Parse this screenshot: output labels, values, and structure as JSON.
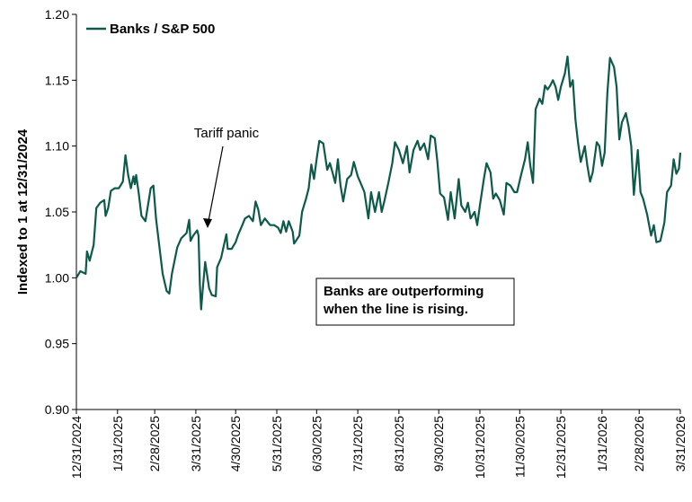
{
  "chart_data": {
    "type": "line",
    "y_label": "Indexed to 1 at 12/31/2024",
    "annotations": [
      {
        "text": "Tariff panic"
      },
      {
        "lines": [
          "Banks are outperforming",
          "when the line is rising."
        ]
      }
    ],
    "legend": "top-left",
    "x": [
      "12/31/2024",
      "1/3/2025",
      "1/7/2025",
      "1/8/2025",
      "1/10/2025",
      "1/13/2025",
      "1/15/2025",
      "1/18/2025",
      "1/21/2025",
      "1/22/2025",
      "1/24/2025",
      "1/26/2025",
      "1/29/2025",
      "2/1/2025",
      "2/4/2025",
      "2/6/2025",
      "2/8/2025",
      "2/10/2025",
      "2/12/2025",
      "2/13/2025",
      "2/14/2025",
      "2/16/2025",
      "2/18/2025",
      "2/21/2025",
      "2/25/2025",
      "2/27/2025",
      "3/1/2025",
      "3/4/2025",
      "3/6/2025",
      "3/9/2025",
      "3/11/2025",
      "3/13/2025",
      "3/17/2025",
      "3/20/2025",
      "3/24/2025",
      "3/26/2025",
      "3/27/2025",
      "3/29/2025",
      "4/1/2025",
      "4/2/2025",
      "4/3/2025",
      "4/4/2025",
      "4/5/2025",
      "4/7/2025",
      "4/10/2025",
      "4/12/2025",
      "4/15/2025",
      "4/16/2025",
      "4/19/2025",
      "4/21/2025",
      "4/23/2025",
      "4/24/2025",
      "4/27/2025",
      "4/30/2025",
      "5/2/2025",
      "5/5/2025",
      "5/7/2025",
      "5/10/2025",
      "5/13/2025",
      "5/15/2025",
      "5/17/2025",
      "5/19/2025",
      "5/22/2025",
      "5/26/2025",
      "5/29/2025",
      "6/1/2025",
      "6/3/2025",
      "6/5/2025",
      "6/7/2025",
      "6/9/2025",
      "6/12/2025",
      "6/13/2025",
      "6/17/2025",
      "6/19/2025",
      "6/22/2025",
      "6/24/2025",
      "6/26/2025",
      "6/28/2025",
      "6/30/2025",
      "7/2/2025",
      "7/5/2025",
      "7/8/2025",
      "7/10/2025",
      "7/12/2025",
      "7/14/2025",
      "7/16/2025",
      "7/18/2025",
      "7/20/2025",
      "7/23/2025",
      "7/26/2025",
      "7/28/2025",
      "7/31/2025",
      "8/3/2025",
      "8/5/2025",
      "8/8/2025",
      "8/10/2025",
      "8/13/2025",
      "8/16/2025",
      "8/18/2025",
      "8/20/2025",
      "8/23/2025",
      "8/26/2025",
      "8/28/2025",
      "8/31/2025",
      "9/3/2025",
      "9/6/2025",
      "9/8/2025",
      "9/11/2025",
      "9/14/2025",
      "9/16/2025",
      "9/19/2025",
      "9/22/2025",
      "9/24/2025",
      "9/27/2025",
      "9/29/2025",
      "10/1/2025",
      "10/4/2025",
      "10/7/2025",
      "10/9/2025",
      "10/12/2025",
      "10/15/2025",
      "10/17/2025",
      "10/20/2025",
      "10/22/2025",
      "10/24/2025",
      "10/27/2025",
      "10/29/2025",
      "10/31/2025",
      "11/3/2025",
      "11/5/2025",
      "11/8/2025",
      "11/10/2025",
      "11/12/2025",
      "11/15/2025",
      "11/18/2025",
      "11/20/2025",
      "11/23/2025",
      "11/26/2025",
      "11/28/2025",
      "12/1/2025",
      "12/4/2025",
      "12/6/2025",
      "12/8/2025",
      "12/10/2025",
      "12/12/2025",
      "12/15/2025",
      "12/17/2025",
      "12/19/2025",
      "12/21/2025",
      "12/23/2025",
      "12/25/2025",
      "12/27/2025",
      "12/29/2025",
      "12/31/2025",
      "1/3/2026",
      "1/5/2026",
      "1/7/2026",
      "1/9/2026",
      "1/11/2026",
      "1/13/2026",
      "1/15/2026",
      "1/18/2026",
      "1/20/2026",
      "1/22/2026",
      "1/24/2026",
      "1/27/2026",
      "1/29/2026",
      "1/31/2026",
      "2/2/2026",
      "2/4/2026",
      "2/6/2026",
      "2/9/2026",
      "2/11/2026",
      "2/13/2026",
      "2/15/2026",
      "2/18/2026",
      "2/20/2026",
      "2/22/2026",
      "2/24/2026",
      "2/27/2026",
      "3/1/2026",
      "3/3/2026",
      "3/6/2026",
      "3/9/2026",
      "3/11/2026",
      "3/13/2026",
      "3/16/2026",
      "3/19/2026",
      "3/21/2026",
      "3/24/2026",
      "3/26/2026",
      "3/28/2026",
      "3/30/2026",
      "3/31/2026"
    ],
    "series": [
      {
        "name": "Banks / S&P 500",
        "color": "#0e5a4a",
        "values": [
          1.0,
          1.005,
          1.003,
          1.02,
          1.013,
          1.025,
          1.053,
          1.057,
          1.059,
          1.047,
          1.053,
          1.066,
          1.068,
          1.068,
          1.073,
          1.093,
          1.078,
          1.068,
          1.077,
          1.071,
          1.078,
          1.064,
          1.047,
          1.043,
          1.068,
          1.07,
          1.045,
          1.02,
          1.003,
          0.99,
          0.988,
          1.003,
          1.023,
          1.03,
          1.034,
          1.044,
          1.028,
          1.032,
          1.036,
          1.032,
          0.995,
          0.976,
          0.989,
          1.012,
          0.992,
          0.987,
          0.986,
          1.008,
          1.015,
          1.024,
          1.033,
          1.022,
          1.022,
          1.027,
          1.033,
          1.04,
          1.045,
          1.047,
          1.043,
          1.058,
          1.052,
          1.04,
          1.045,
          1.04,
          1.04,
          1.038,
          1.034,
          1.043,
          1.035,
          1.043,
          1.035,
          1.026,
          1.032,
          1.05,
          1.06,
          1.068,
          1.086,
          1.075,
          1.09,
          1.104,
          1.102,
          1.082,
          1.087,
          1.08,
          1.072,
          1.09,
          1.07,
          1.058,
          1.075,
          1.078,
          1.088,
          1.077,
          1.07,
          1.065,
          1.045,
          1.065,
          1.05,
          1.065,
          1.05,
          1.058,
          1.072,
          1.087,
          1.103,
          1.097,
          1.087,
          1.1,
          1.08,
          1.097,
          1.104,
          1.097,
          1.102,
          1.09,
          1.108,
          1.106,
          1.088,
          1.064,
          1.061,
          1.044,
          1.065,
          1.045,
          1.075,
          1.055,
          1.05,
          1.057,
          1.045,
          1.05,
          1.04,
          1.055,
          1.075,
          1.087,
          1.08,
          1.06,
          1.064,
          1.059,
          1.048,
          1.072,
          1.07,
          1.065,
          1.065,
          1.078,
          1.09,
          1.103,
          1.085,
          1.072,
          1.128,
          1.136,
          1.132,
          1.146,
          1.143,
          1.146,
          1.15,
          1.145,
          1.135,
          1.145,
          1.155,
          1.168,
          1.145,
          1.15,
          1.12,
          1.102,
          1.088,
          1.1,
          1.085,
          1.073,
          1.08,
          1.103,
          1.1,
          1.085,
          1.095,
          1.14,
          1.167,
          1.16,
          1.145,
          1.105,
          1.118,
          1.125,
          1.115,
          1.1,
          1.063,
          1.097,
          1.065,
          1.06,
          1.048,
          1.032,
          1.04,
          1.027,
          1.028,
          1.042,
          1.065,
          1.07,
          1.09,
          1.079,
          1.083,
          1.095
        ]
      }
    ],
    "xlim": [
      "12/31/2024",
      "3/31/2026"
    ],
    "xticks": [
      "12/31/2024",
      "1/31/2025",
      "2/28/2025",
      "3/31/2025",
      "4/30/2025",
      "5/31/2025",
      "6/30/2025",
      "7/31/2025",
      "8/31/2025",
      "9/30/2025",
      "10/31/2025",
      "11/30/2025",
      "12/31/2025",
      "1/31/2026",
      "2/28/2026",
      "3/31/2026"
    ],
    "ylim": [
      0.9,
      1.2
    ],
    "yticks": [
      {
        "value": 0.9,
        "label": "0.90"
      },
      0.95,
      {
        "value": 1.0,
        "label": "1.00"
      },
      1.05,
      {
        "value": 1.1,
        "label": "1.10"
      },
      1.15,
      {
        "value": 1.2,
        "label": "1.20"
      }
    ],
    "grid": false
  }
}
